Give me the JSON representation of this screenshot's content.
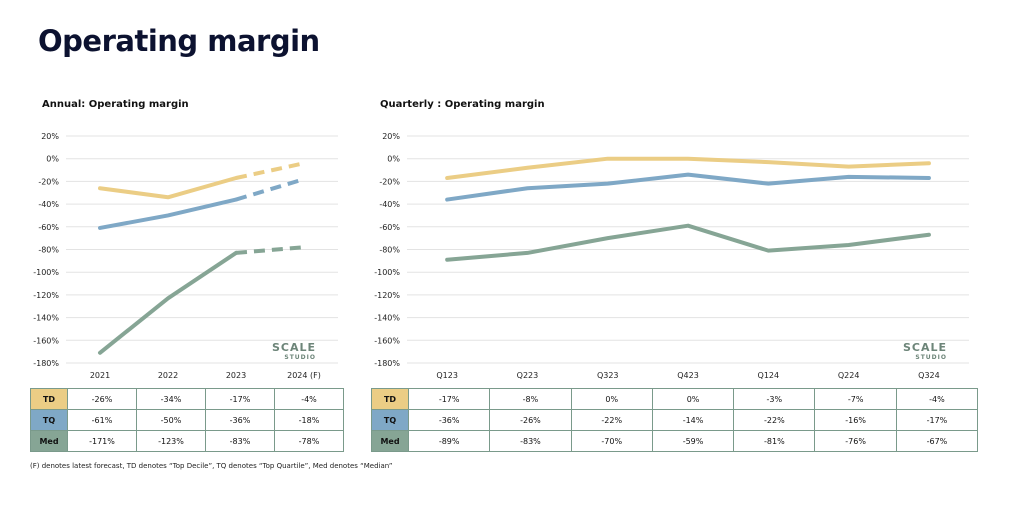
{
  "page_title": "Operating margin",
  "footnote": "(F) denotes latest forecast, TD denotes “Top Decile”, TQ denotes “Top Quartile”, Med denotes “Median”",
  "logo": {
    "line1": "SCALE",
    "line2": "STUDIO"
  },
  "colors": {
    "TD": "#ebcd85",
    "TQ": "#7fa8c6",
    "Med": "#86a595",
    "border": "#7a9a8b"
  },
  "chart_data": [
    {
      "type": "line",
      "title": "Annual: Operating margin",
      "categories": [
        "2021",
        "2022",
        "2023",
        "2024 (F)"
      ],
      "forecast_from_index": 2,
      "ylim": [
        -180,
        20
      ],
      "yticks": [
        20,
        0,
        -20,
        -40,
        -60,
        -80,
        -100,
        -120,
        -140,
        -160,
        -180
      ],
      "ytick_labels": [
        "20%",
        "0%",
        "-20%",
        "-40%",
        "-60%",
        "-80%",
        "-100%",
        "-120%",
        "-140%",
        "-160%",
        "-180%"
      ],
      "grid": true,
      "series": [
        {
          "name": "TD",
          "values": [
            -26,
            -34,
            -17,
            -4
          ],
          "labels": [
            "-26%",
            "-34%",
            "-17%",
            "-4%"
          ]
        },
        {
          "name": "TQ",
          "values": [
            -61,
            -50,
            -36,
            -18
          ],
          "labels": [
            "-61%",
            "-50%",
            "-36%",
            "-18%"
          ]
        },
        {
          "name": "Med",
          "values": [
            -171,
            -123,
            -83,
            -78
          ],
          "labels": [
            "-171%",
            "-123%",
            "-83%",
            "-78%"
          ]
        }
      ]
    },
    {
      "type": "line",
      "title": "Quarterly : Operating margin",
      "categories": [
        "Q123",
        "Q223",
        "Q323",
        "Q423",
        "Q124",
        "Q224",
        "Q324"
      ],
      "ylim": [
        -180,
        20
      ],
      "yticks": [
        20,
        0,
        -20,
        -40,
        -60,
        -80,
        -100,
        -120,
        -140,
        -160,
        -180
      ],
      "ytick_labels": [
        "20%",
        "0%",
        "-20%",
        "-40%",
        "-60%",
        "-80%",
        "-100%",
        "-120%",
        "-140%",
        "-160%",
        "-180%"
      ],
      "grid": true,
      "series": [
        {
          "name": "TD",
          "values": [
            -17,
            -8,
            0,
            0,
            -3,
            -7,
            -4
          ],
          "labels": [
            "-17%",
            "-8%",
            "0%",
            "0%",
            "-3%",
            "-7%",
            "-4%"
          ]
        },
        {
          "name": "TQ",
          "values": [
            -36,
            -26,
            -22,
            -14,
            -22,
            -16,
            -17
          ],
          "labels": [
            "-36%",
            "-26%",
            "-22%",
            "-14%",
            "-22%",
            "-16%",
            "-17%"
          ]
        },
        {
          "name": "Med",
          "values": [
            -89,
            -83,
            -70,
            -59,
            -81,
            -76,
            -67
          ],
          "labels": [
            "-89%",
            "-83%",
            "-70%",
            "-59%",
            "-81%",
            "-76%",
            "-67%"
          ]
        }
      ]
    }
  ]
}
